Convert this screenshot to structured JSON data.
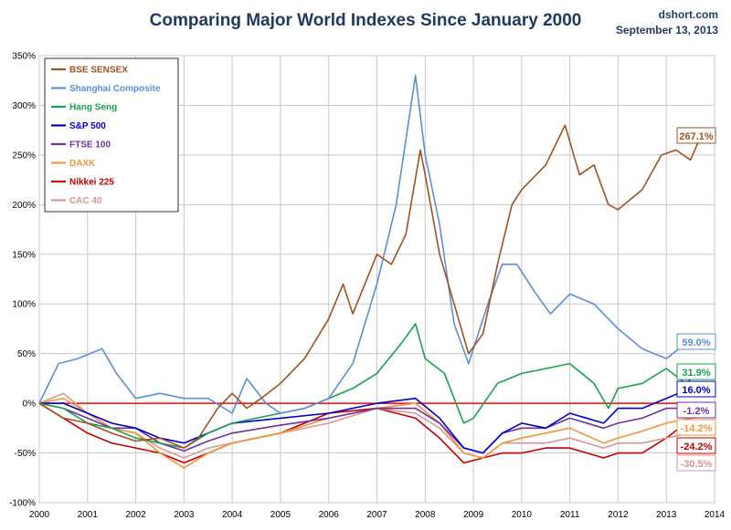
{
  "title": "Comparing Major World Indexes Since January 2000",
  "source": "dshort.com",
  "date": "September 13, 2013",
  "chart_data": {
    "type": "line",
    "title": "Comparing Major World Indexes Since January 2000",
    "xlabel": "",
    "ylabel": "",
    "xlim": [
      2000,
      2014
    ],
    "ylim": [
      -100,
      350
    ],
    "x_ticks": [
      "2000",
      "2001",
      "2002",
      "2003",
      "2004",
      "2005",
      "2006",
      "2007",
      "2008",
      "2009",
      "2010",
      "2011",
      "2012",
      "2013",
      "2014"
    ],
    "y_ticks": [
      "350%",
      "300%",
      "250%",
      "200%",
      "150%",
      "100%",
      "50%",
      "0%",
      "-50%",
      "-100%"
    ],
    "grid": true,
    "legend_position": "top-left",
    "zero_line_color": "#ff0000",
    "series": [
      {
        "name": "BSE SENSEX",
        "color": "#a0521e",
        "end_label": "267.1%",
        "x": [
          2000,
          2000.5,
          2001,
          2001.5,
          2002,
          2002.5,
          2003,
          2003.3,
          2003.7,
          2004,
          2004.3,
          2004.6,
          2005,
          2005.5,
          2006,
          2006.3,
          2006.5,
          2007,
          2007.3,
          2007.6,
          2007.9,
          2008,
          2008.3,
          2008.6,
          2008.9,
          2009.2,
          2009.5,
          2009.8,
          2010,
          2010.5,
          2010.9,
          2011.2,
          2011.5,
          2011.8,
          2012,
          2012.5,
          2012.9,
          2013.2,
          2013.5,
          2013.7
        ],
        "y": [
          0,
          -15,
          -20,
          -30,
          -38,
          -35,
          -45,
          -35,
          -5,
          10,
          -5,
          5,
          20,
          45,
          85,
          120,
          90,
          150,
          140,
          170,
          255,
          230,
          150,
          100,
          50,
          70,
          140,
          200,
          215,
          240,
          280,
          230,
          240,
          200,
          195,
          215,
          250,
          255,
          245,
          267.1
        ]
      },
      {
        "name": "Shanghai Composite",
        "color": "#5b8fd6",
        "end_label": "59.0%",
        "x": [
          2000,
          2000.4,
          2000.8,
          2001.3,
          2001.6,
          2002,
          2002.5,
          2003,
          2003.5,
          2004,
          2004.3,
          2004.7,
          2005,
          2005.5,
          2006,
          2006.5,
          2007,
          2007.4,
          2007.8,
          2008,
          2008.3,
          2008.6,
          2008.9,
          2009.3,
          2009.6,
          2009.9,
          2010.3,
          2010.6,
          2011,
          2011.5,
          2012,
          2012.5,
          2013,
          2013.4,
          2013.7
        ],
        "y": [
          0,
          40,
          45,
          55,
          30,
          5,
          10,
          5,
          5,
          -10,
          25,
          0,
          -10,
          -5,
          5,
          40,
          120,
          200,
          330,
          250,
          180,
          80,
          40,
          100,
          140,
          140,
          110,
          90,
          110,
          100,
          75,
          55,
          45,
          60,
          59.0
        ]
      },
      {
        "name": "Hang Seng",
        "color": "#1aa14c",
        "end_label": "31.9%",
        "x": [
          2000,
          2000.5,
          2001,
          2001.5,
          2002,
          2002.5,
          2003,
          2003.5,
          2004,
          2004.5,
          2005,
          2005.5,
          2006,
          2006.5,
          2007,
          2007.5,
          2007.8,
          2008,
          2008.4,
          2008.8,
          2009,
          2009.5,
          2010,
          2010.5,
          2011,
          2011.5,
          2011.8,
          2012,
          2012.5,
          2013,
          2013.4,
          2013.7
        ],
        "y": [
          0,
          -5,
          -20,
          -25,
          -35,
          -40,
          -45,
          -30,
          -20,
          -15,
          -10,
          -5,
          5,
          15,
          30,
          60,
          80,
          45,
          30,
          -20,
          -15,
          20,
          30,
          35,
          40,
          20,
          -5,
          15,
          20,
          35,
          20,
          31.9
        ]
      },
      {
        "name": "S&P 500",
        "color": "#0000cc",
        "end_label": "16.0%",
        "x": [
          2000,
          2000.5,
          2001,
          2001.5,
          2002,
          2002.5,
          2003,
          2003.5,
          2004,
          2005,
          2006,
          2007,
          2007.8,
          2008.3,
          2008.8,
          2009.2,
          2009.6,
          2010,
          2010.5,
          2011,
          2011.7,
          2012,
          2012.5,
          2013,
          2013.5,
          2013.7
        ],
        "y": [
          0,
          0,
          -10,
          -20,
          -25,
          -35,
          -40,
          -30,
          -20,
          -15,
          -10,
          0,
          5,
          -15,
          -45,
          -50,
          -30,
          -20,
          -25,
          -10,
          -20,
          -5,
          -5,
          5,
          15,
          16.0
        ]
      },
      {
        "name": "FTSE 100",
        "color": "#7030a0",
        "end_label": "-1.2%",
        "x": [
          2000,
          2000.5,
          2001,
          2001.5,
          2002,
          2002.5,
          2003,
          2003.5,
          2004,
          2005,
          2006,
          2007,
          2007.8,
          2008.3,
          2008.8,
          2009.2,
          2009.6,
          2010,
          2010.5,
          2011,
          2011.7,
          2012,
          2012.5,
          2013,
          2013.5,
          2013.7
        ],
        "y": [
          0,
          -5,
          -15,
          -25,
          -25,
          -40,
          -48,
          -38,
          -30,
          -22,
          -15,
          -5,
          -5,
          -20,
          -45,
          -50,
          -30,
          -25,
          -25,
          -15,
          -25,
          -20,
          -15,
          -5,
          -5,
          -1.2
        ]
      },
      {
        "name": "DAXK",
        "color": "#f0963c",
        "end_label": "-14.2%",
        "x": [
          2000,
          2000.5,
          2001,
          2001.5,
          2002,
          2002.5,
          2003,
          2003.5,
          2004,
          2005,
          2006,
          2007,
          2007.8,
          2008.3,
          2008.8,
          2009.2,
          2009.6,
          2010,
          2010.5,
          2011,
          2011.7,
          2012,
          2012.5,
          2013,
          2013.5,
          2013.7
        ],
        "y": [
          0,
          5,
          -10,
          -25,
          -30,
          -50,
          -65,
          -50,
          -40,
          -30,
          -15,
          -5,
          0,
          -20,
          -50,
          -55,
          -40,
          -35,
          -30,
          -25,
          -40,
          -35,
          -28,
          -20,
          -15,
          -14.2
        ]
      },
      {
        "name": "Nikkei 225",
        "color": "#c00000",
        "end_label": "-24.2%",
        "x": [
          2000,
          2000.5,
          2001,
          2001.5,
          2002,
          2002.5,
          2003,
          2003.5,
          2004,
          2005,
          2006,
          2007,
          2007.8,
          2008.3,
          2008.8,
          2009.2,
          2009.6,
          2010,
          2010.5,
          2011,
          2011.7,
          2012,
          2012.5,
          2013,
          2013.4,
          2013.7
        ],
        "y": [
          0,
          -15,
          -30,
          -40,
          -45,
          -50,
          -60,
          -50,
          -40,
          -30,
          -10,
          -5,
          -15,
          -35,
          -60,
          -55,
          -50,
          -50,
          -45,
          -45,
          -55,
          -50,
          -50,
          -35,
          -20,
          -24.2
        ]
      },
      {
        "name": "CAC 40",
        "color": "#d99694",
        "end_label": "-30.5%",
        "x": [
          2000,
          2000.5,
          2001,
          2001.5,
          2002,
          2002.5,
          2003,
          2003.5,
          2004,
          2005,
          2006,
          2007,
          2007.8,
          2008.3,
          2008.8,
          2009.2,
          2009.6,
          2010,
          2010.5,
          2011,
          2011.7,
          2012,
          2012.5,
          2013,
          2013.5,
          2013.7
        ],
        "y": [
          0,
          10,
          -10,
          -25,
          -30,
          -45,
          -55,
          -45,
          -40,
          -30,
          -20,
          -5,
          -10,
          -25,
          -50,
          -55,
          -40,
          -40,
          -40,
          -35,
          -45,
          -40,
          -40,
          -35,
          -30,
          -30.5
        ]
      }
    ]
  }
}
